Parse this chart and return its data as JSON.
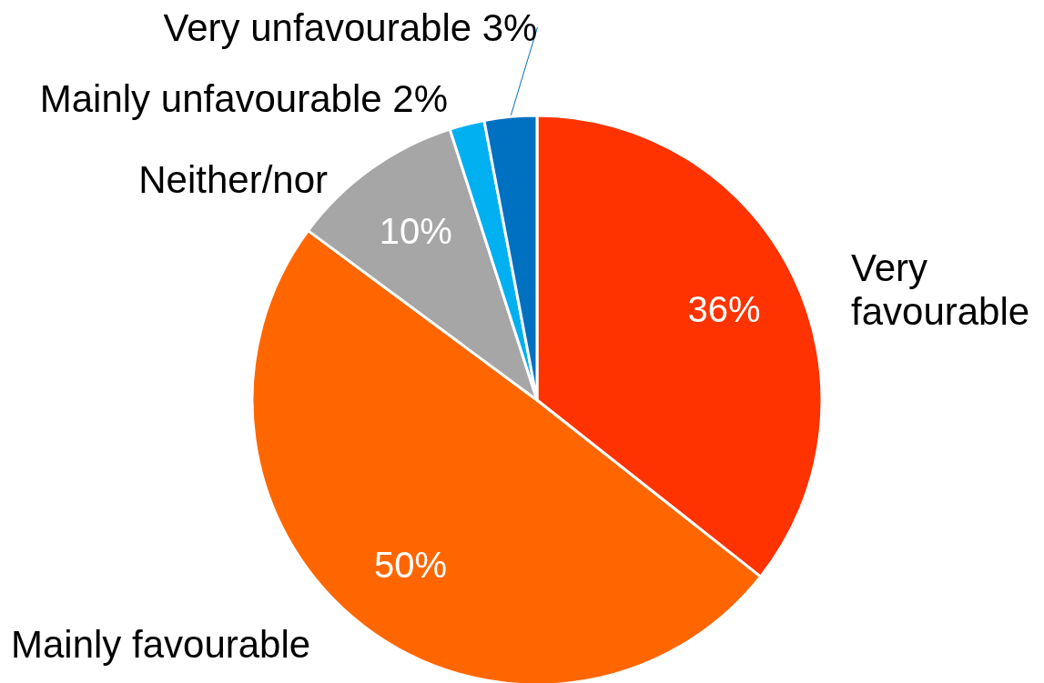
{
  "chart_data": {
    "type": "pie",
    "categories": [
      "Very favourable",
      "Mainly favourable",
      "Neither/nor",
      "Mainly unfavourable",
      "Very unfavourable"
    ],
    "values": [
      36,
      50,
      10,
      2,
      3
    ],
    "value_labels": [
      "36%",
      "50%",
      "10%",
      "2%",
      "3%"
    ],
    "colors": [
      "#ff3300",
      "#ff6600",
      "#a6a6a6",
      "#00b0f0",
      "#0070c0"
    ],
    "legend": false
  }
}
